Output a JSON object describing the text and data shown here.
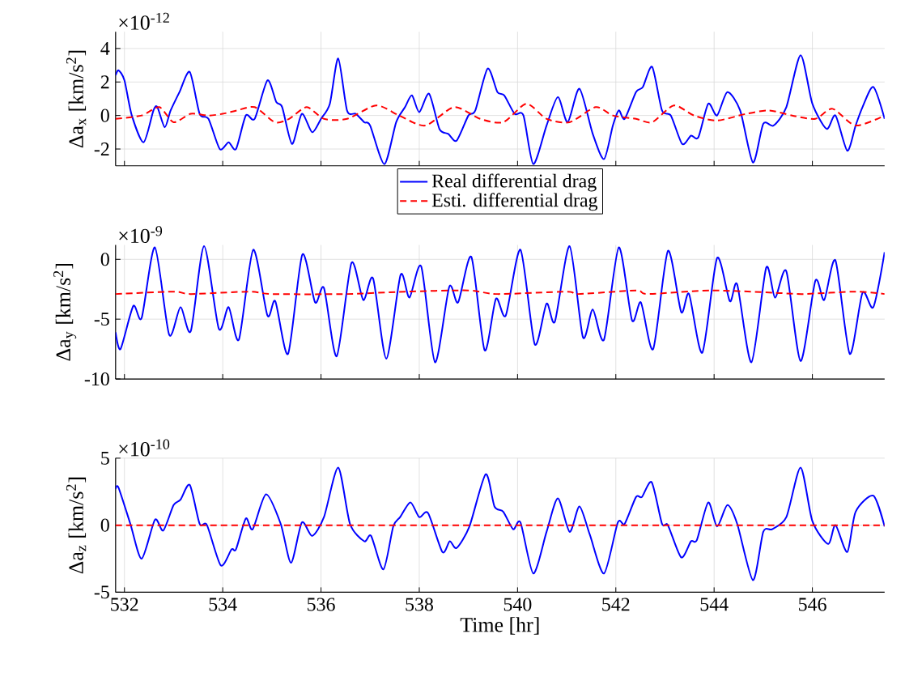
{
  "chart_data": [
    {
      "type": "line",
      "ylabel": "Δa$_{x}$ [km/s$^{2}$]",
      "annotations": [
        "×10$^{-12}$"
      ],
      "xlim": [
        531.82,
        547.47
      ],
      "ylim": [
        -3,
        5
      ],
      "xticks": [
        532,
        534,
        536,
        538,
        540,
        542,
        544,
        546
      ],
      "yticks": [
        -2,
        0,
        2,
        4
      ],
      "grid": true,
      "legend": "bottom",
      "tick_labels": "y",
      "series": [
        {
          "name": "Real differential drag",
          "color": "#0000ff",
          "line_style": "solid",
          "x": [
            531.82,
            531.88,
            532.0,
            532.15,
            532.39,
            532.59,
            532.67,
            532.82,
            532.94,
            533.12,
            533.33,
            533.53,
            533.71,
            533.94,
            534.12,
            534.27,
            534.47,
            534.65,
            534.91,
            535.09,
            535.21,
            535.41,
            535.61,
            535.82,
            536.0,
            536.18,
            536.35,
            536.53,
            536.71,
            536.88,
            537.0,
            537.29,
            537.53,
            537.71,
            537.85,
            538.0,
            538.2,
            538.41,
            538.59,
            538.76,
            539.0,
            539.14,
            539.39,
            539.59,
            539.73,
            539.94,
            540.12,
            540.32,
            540.59,
            540.82,
            541.02,
            541.26,
            541.53,
            541.76,
            541.94,
            542.06,
            542.18,
            542.41,
            542.55,
            542.74,
            542.94,
            543.12,
            543.35,
            543.53,
            543.68,
            543.88,
            544.06,
            544.27,
            544.53,
            544.79,
            545.0,
            545.21,
            545.47,
            545.76,
            546.0,
            546.29,
            546.47,
            546.71,
            546.88,
            547.02,
            547.24,
            547.47
          ],
          "values": [
            2.4,
            2.7,
            2.1,
            0,
            -1.6,
            0.3,
            0.5,
            -0.7,
            0.3,
            1.4,
            2.6,
            0.1,
            -0.2,
            -2.0,
            -1.6,
            -2.0,
            0,
            -0.2,
            2.1,
            0.8,
            0.5,
            -1.7,
            0.1,
            -1.0,
            -0.2,
            0.7,
            3.4,
            0.3,
            0.1,
            -0.4,
            -0.6,
            -2.9,
            -0.4,
            0.5,
            1.2,
            0.2,
            1.3,
            -0.8,
            -1.1,
            -1.5,
            0,
            0.3,
            2.8,
            1.4,
            1.2,
            0.1,
            0,
            -2.9,
            -0.6,
            1.1,
            -0.4,
            1.6,
            -1.1,
            -2.6,
            -0.6,
            0.3,
            -0.2,
            1.4,
            1.7,
            2.9,
            0.3,
            0,
            -1.7,
            -1.2,
            -1.3,
            0.7,
            0,
            1.4,
            0.3,
            -2.8,
            -0.5,
            -0.6,
            0.5,
            3.6,
            0.7,
            -0.8,
            0,
            -2.1,
            -0.6,
            0.5,
            1.7,
            -0.2
          ]
        },
        {
          "name": "Esti. differential drag",
          "color": "#ff0000",
          "line_style": "dashed",
          "x": [
            531.82,
            532.35,
            532.71,
            533.0,
            533.35,
            533.71,
            534.0,
            534.29,
            534.65,
            535.06,
            535.35,
            535.71,
            536.06,
            536.53,
            537.12,
            537.59,
            538.12,
            538.71,
            539.24,
            539.71,
            540.18,
            540.59,
            541.06,
            541.59,
            541.94,
            542.41,
            542.74,
            543.18,
            543.59,
            544.06,
            544.65,
            545.12,
            545.59,
            546.06,
            546.41,
            546.88,
            547.47
          ],
          "values": [
            -0.2,
            0,
            0.5,
            -0.4,
            0.1,
            0,
            0.1,
            0.3,
            0.5,
            -0.4,
            -0.2,
            0.5,
            -0.2,
            -0.2,
            0.6,
            0,
            -0.6,
            0.5,
            -0.2,
            -0.4,
            0.7,
            -0.2,
            -0.4,
            0.5,
            0,
            -0.2,
            -0.4,
            0.6,
            0,
            -0.3,
            0.1,
            0.3,
            0,
            -0.2,
            0.4,
            -0.6,
            0
          ]
        }
      ]
    },
    {
      "type": "line",
      "ylabel": "Δa$_{y}$ [km/s$^{2}$]",
      "annotations": [
        "×10$^{-9}$"
      ],
      "xlim": [
        531.82,
        547.47
      ],
      "ylim": [
        -10,
        1.2
      ],
      "xticks": [
        532,
        534,
        536,
        538,
        540,
        542,
        544,
        546
      ],
      "yticks": [
        -10,
        -5,
        0
      ],
      "grid": true,
      "tick_labels": "y",
      "series": [
        {
          "color": "#0000ff",
          "line_style": "solid",
          "x": [
            531.82,
            531.92,
            532.18,
            532.35,
            532.62,
            532.91,
            533.14,
            533.35,
            533.62,
            533.92,
            534.12,
            534.33,
            534.62,
            534.91,
            535.07,
            535.33,
            535.62,
            535.88,
            536.06,
            536.32,
            536.62,
            536.86,
            537.06,
            537.33,
            537.62,
            537.8,
            538.04,
            538.32,
            538.61,
            538.79,
            539.06,
            539.33,
            539.56,
            539.76,
            540.06,
            540.35,
            540.59,
            540.76,
            541.06,
            541.33,
            541.53,
            541.76,
            542.06,
            542.33,
            542.51,
            542.76,
            543.06,
            543.33,
            543.49,
            543.76,
            544.06,
            544.32,
            544.47,
            544.76,
            545.06,
            545.24,
            545.47,
            545.76,
            546.06,
            546.24,
            546.47,
            546.76,
            547.02,
            547.24,
            547.47
          ],
          "values": [
            -6.1,
            -7.5,
            -3.9,
            -4.9,
            1.0,
            -6.3,
            -4.0,
            -6.0,
            1.1,
            -5.8,
            -4.0,
            -6.7,
            0.8,
            -4.7,
            -3.5,
            -7.9,
            0.4,
            -3.6,
            -2.4,
            -8.1,
            -0.3,
            -3.4,
            -1.6,
            -8.3,
            -1.3,
            -3.2,
            -0.6,
            -8.6,
            -2.3,
            -3.6,
            0.2,
            -7.6,
            -3.3,
            -4.7,
            0.8,
            -7.1,
            -3.7,
            -5.2,
            1.1,
            -6.5,
            -4.2,
            -6.7,
            1.0,
            -5.1,
            -3.6,
            -7.5,
            0.7,
            -4.4,
            -2.9,
            -7.8,
            0.1,
            -3.5,
            -2.1,
            -8.6,
            -0.7,
            -3.2,
            -1.0,
            -8.5,
            -1.8,
            -3.4,
            -0.1,
            -7.9,
            -2.8,
            -4.0,
            0.6
          ]
        },
        {
          "color": "#ff0000",
          "line_style": "dashed",
          "x": [
            531.82,
            533.0,
            533.35,
            534.53,
            535.0,
            536.53,
            537.71,
            539.0,
            539.59,
            541.0,
            541.24,
            542.41,
            542.65,
            543.94,
            545.24,
            545.82,
            546.88,
            547.47
          ],
          "values": [
            -2.9,
            -2.7,
            -2.9,
            -2.7,
            -2.9,
            -2.9,
            -2.7,
            -2.6,
            -2.9,
            -2.7,
            -2.9,
            -2.6,
            -2.9,
            -2.6,
            -2.8,
            -2.9,
            -2.7,
            -2.9
          ]
        }
      ]
    },
    {
      "type": "line",
      "xlabel": "Time [hr]",
      "ylabel": "Δa$_{z}$ [km/s$^{2}$]",
      "annotations": [
        "×10$^{-10}$"
      ],
      "xlim": [
        531.82,
        547.47
      ],
      "ylim": [
        -5,
        5
      ],
      "xticks": [
        532,
        534,
        536,
        538,
        540,
        542,
        544,
        546
      ],
      "yticks": [
        -5,
        0,
        5
      ],
      "grid": true,
      "series": [
        {
          "color": "#0000ff",
          "line_style": "solid",
          "x": [
            531.82,
            531.88,
            532.12,
            532.35,
            532.62,
            532.79,
            533.0,
            533.14,
            533.33,
            533.53,
            533.68,
            533.96,
            534.18,
            534.27,
            534.47,
            534.61,
            534.88,
            535.18,
            535.39,
            535.61,
            535.82,
            536.06,
            536.35,
            536.59,
            536.88,
            537.02,
            537.27,
            537.47,
            537.61,
            537.82,
            538.0,
            538.18,
            538.47,
            538.62,
            538.76,
            539.02,
            539.35,
            539.53,
            539.71,
            539.91,
            540.06,
            540.32,
            540.59,
            540.82,
            541.06,
            541.26,
            541.47,
            541.76,
            542.04,
            542.18,
            542.41,
            542.53,
            542.73,
            542.94,
            543.06,
            543.33,
            543.53,
            543.65,
            543.88,
            544.06,
            544.27,
            544.47,
            544.79,
            545.0,
            545.18,
            545.47,
            545.76,
            546.0,
            546.32,
            546.47,
            546.71,
            546.88,
            547.24,
            547.47
          ],
          "values": [
            2.7,
            2.8,
            0.1,
            -2.5,
            0.4,
            -0.4,
            1.5,
            1.9,
            3.0,
            0.1,
            0,
            -3.0,
            -1.8,
            -1.8,
            0.5,
            -0.3,
            2.3,
            0.1,
            -2.8,
            0.2,
            -0.8,
            0.6,
            4.3,
            0.1,
            -1.2,
            -0.8,
            -3.3,
            -0.1,
            0.6,
            1.7,
            0.6,
            0.9,
            -2.0,
            -1.2,
            -1.7,
            -0.1,
            3.8,
            1.4,
            1.0,
            -0.3,
            0.2,
            -3.6,
            -0.5,
            2.0,
            -0.5,
            1.4,
            -0.7,
            -3.6,
            0.2,
            0.1,
            2.1,
            2.1,
            3.2,
            0.1,
            0,
            -2.4,
            -1.2,
            -1.1,
            1.7,
            -0.1,
            1.5,
            0.1,
            -4.1,
            -0.5,
            -0.3,
            0.6,
            4.3,
            0.3,
            -1.4,
            0,
            -2.0,
            1.0,
            2.2,
            -0.1
          ]
        },
        {
          "color": "#ff0000",
          "line_style": "dashed",
          "x": [
            531.82,
            536.0,
            540.0,
            544.0,
            547.47
          ],
          "values": [
            0,
            0,
            0,
            0,
            0
          ]
        }
      ]
    }
  ]
}
